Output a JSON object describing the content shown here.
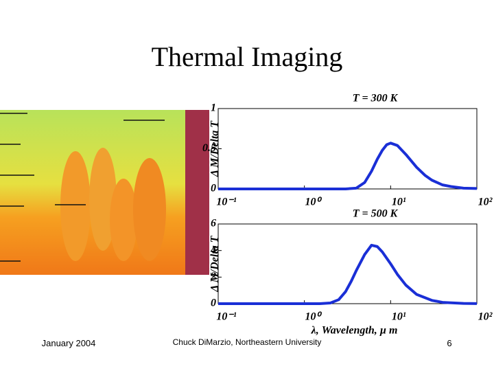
{
  "slide": {
    "title": "Thermal Imaging",
    "footer_left": "January 2004",
    "footer_center": "Chuck DiMarzio, Northeastern University",
    "page_number": "6"
  },
  "chart_data": [
    {
      "type": "line",
      "title": "T = 300 K",
      "y_label": "Δ M/Delta T",
      "log_x": true,
      "xlim": [
        0.1,
        100
      ],
      "ylim": [
        0,
        1
      ],
      "xticks": [
        {
          "value": 0.1,
          "label": "10⁻¹"
        },
        {
          "value": 1,
          "label": "10⁰"
        },
        {
          "value": 10,
          "label": "10¹"
        },
        {
          "value": 100,
          "label": "10²"
        }
      ],
      "yticks": [
        0,
        0.5,
        1
      ],
      "x": [
        0.1,
        1,
        2,
        3,
        4,
        5,
        6,
        7,
        8,
        9,
        10,
        12,
        15,
        20,
        25,
        30,
        40,
        50,
        70,
        100
      ],
      "series": [
        {
          "color": "#1a2fd6",
          "values": [
            0,
            0,
            0,
            0,
            0.01,
            0.08,
            0.22,
            0.37,
            0.48,
            0.55,
            0.57,
            0.54,
            0.43,
            0.27,
            0.17,
            0.11,
            0.05,
            0.03,
            0.01,
            0.005
          ]
        }
      ]
    },
    {
      "type": "line",
      "title": "T = 500 K",
      "y_label": "Δ M/Delta T",
      "x_label": "λ, Wavelength, µ m",
      "log_x": true,
      "xlim": [
        0.1,
        100
      ],
      "ylim": [
        0,
        6
      ],
      "xticks": [
        {
          "value": 0.1,
          "label": "10⁻¹"
        },
        {
          "value": 1,
          "label": "10⁰"
        },
        {
          "value": 10,
          "label": "10¹"
        },
        {
          "value": 100,
          "label": "10²"
        }
      ],
      "yticks": [
        0,
        2,
        4,
        6
      ],
      "x": [
        0.1,
        1,
        1.5,
        2,
        2.5,
        3,
        3.5,
        4,
        5,
        6,
        7,
        8,
        10,
        12,
        15,
        20,
        30,
        40,
        70,
        100
      ],
      "series": [
        {
          "color": "#1a2fd6",
          "values": [
            0,
            0,
            0,
            0.05,
            0.3,
            0.9,
            1.7,
            2.5,
            3.7,
            4.4,
            4.3,
            3.9,
            3.0,
            2.2,
            1.4,
            0.7,
            0.25,
            0.1,
            0.02,
            0.005
          ]
        }
      ]
    }
  ]
}
